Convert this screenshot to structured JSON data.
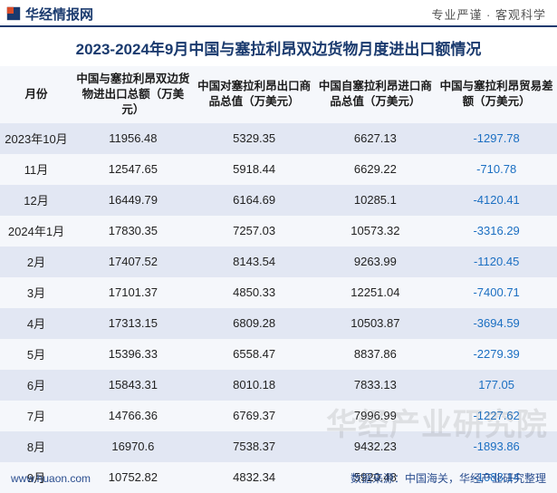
{
  "brand": {
    "name": "华经情报网",
    "motto": "专业严谨 · 客观科学",
    "logo_color": "#1a3a6e",
    "logo_accent": "#d94c2a"
  },
  "title": "2023-2024年9月中国与塞拉利昂双边货物月度进出口额情况",
  "columns": [
    "月份",
    "中国与塞拉利昂双边货物进出口总额（万美元）",
    "中国对塞拉利昂出口商品总值（万美元）",
    "中国自塞拉利昂进口商品总值（万美元）",
    "中国与塞拉利昂贸易差额（万美元）"
  ],
  "rows": [
    {
      "month": "2023年10月",
      "total": "11956.48",
      "export": "5329.35",
      "import": "6627.13",
      "balance": "-1297.78"
    },
    {
      "month": "11月",
      "total": "12547.65",
      "export": "5918.44",
      "import": "6629.22",
      "balance": "-710.78"
    },
    {
      "month": "12月",
      "total": "16449.79",
      "export": "6164.69",
      "import": "10285.1",
      "balance": "-4120.41"
    },
    {
      "month": "2024年1月",
      "total": "17830.35",
      "export": "7257.03",
      "import": "10573.32",
      "balance": "-3316.29"
    },
    {
      "month": "2月",
      "total": "17407.52",
      "export": "8143.54",
      "import": "9263.99",
      "balance": "-1120.45"
    },
    {
      "month": "3月",
      "total": "17101.37",
      "export": "4850.33",
      "import": "12251.04",
      "balance": "-7400.71"
    },
    {
      "month": "4月",
      "total": "17313.15",
      "export": "6809.28",
      "import": "10503.87",
      "balance": "-3694.59"
    },
    {
      "month": "5月",
      "total": "15396.33",
      "export": "6558.47",
      "import": "8837.86",
      "balance": "-2279.39"
    },
    {
      "month": "6月",
      "total": "15843.31",
      "export": "8010.18",
      "import": "7833.13",
      "balance": "177.05"
    },
    {
      "month": "7月",
      "total": "14766.36",
      "export": "6769.37",
      "import": "7996.99",
      "balance": "-1227.62"
    },
    {
      "month": "8月",
      "total": "16970.6",
      "export": "7538.37",
      "import": "9432.23",
      "balance": "-1893.86"
    },
    {
      "month": "9月",
      "total": "10752.82",
      "export": "4832.34",
      "import": "5920.48",
      "balance": "-1088.14"
    }
  ],
  "footer": {
    "site": "www.huaon.com",
    "source": "数据来源：中国海关，华经产业研究整理"
  },
  "watermark": "华经产业研究院",
  "style": {
    "header_border": "#1a3a6e",
    "title_color": "#1a3a6e",
    "row_odd_bg": "#e2e7f3",
    "row_even_bg": "#f5f7fb",
    "balance_color": "#1b6fc2",
    "text_color": "#222222",
    "footer_color": "#2b4e8f",
    "title_fontsize": 17,
    "header_fontsize": 12.5,
    "cell_fontsize": 13
  }
}
